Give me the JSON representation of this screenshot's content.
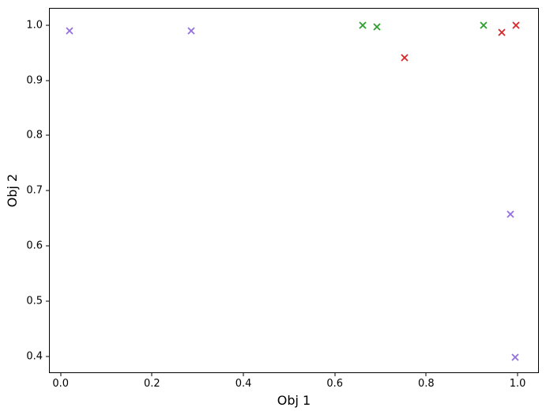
{
  "chart_data": {
    "type": "scatter",
    "title": "",
    "xlabel": "Obj 1",
    "ylabel": "Obj 2",
    "marker_style": "x",
    "grid": false,
    "legend_position": "none",
    "xlim": [
      -0.0254,
      1.0466
    ],
    "ylim": [
      0.37,
      1.031
    ],
    "x_ticks": [
      0.0,
      0.2,
      0.4,
      0.6,
      0.8,
      1.0
    ],
    "x_tick_labels": [
      "0.0",
      "0.2",
      "0.4",
      "0.6",
      "0.8",
      "1.0"
    ],
    "y_ticks": [
      0.4,
      0.5,
      0.6,
      0.7,
      0.8,
      0.9,
      1.0
    ],
    "y_tick_labels": [
      "0.4",
      "0.5",
      "0.6",
      "0.7",
      "0.8",
      "0.9",
      "1.0"
    ],
    "series": [
      {
        "name": "purple-points",
        "color": "#9370DB",
        "points": [
          [
            0.019,
            0.99
          ],
          [
            0.285,
            0.989
          ],
          [
            0.984,
            0.657
          ],
          [
            0.995,
            0.399
          ]
        ]
      },
      {
        "name": "green-points",
        "color": "#2ca02c",
        "points": [
          [
            0.661,
            1.0
          ],
          [
            0.693,
            0.997
          ],
          [
            0.926,
            0.999
          ]
        ]
      },
      {
        "name": "red-points",
        "color": "#d62728",
        "points": [
          [
            0.752,
            0.941
          ],
          [
            0.965,
            0.987
          ],
          [
            0.996,
            0.999
          ]
        ]
      }
    ],
    "colors": {
      "spine": "#000000",
      "text": "#000000",
      "background": "#ffffff"
    }
  }
}
